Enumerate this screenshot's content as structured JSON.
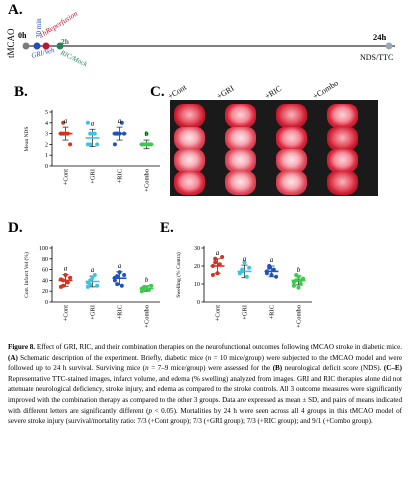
{
  "panelA": {
    "letter": "A.",
    "side_label": "tMCAO",
    "t0": "0h",
    "t_reperf": "1h",
    "reperf_label": "Reperfusion",
    "t30": "30 min",
    "gri_label": "GRI/Veh",
    "t2": "2h",
    "ric_label": "RIC/Mock",
    "t24": "24h",
    "nds_label": "NDS/TTC",
    "colors": {
      "t0": "#7b7b7b",
      "t30": "#1f4fbf",
      "reperf": "#c0142a",
      "ric": "#2e7d5b",
      "t24": "#9aa7b8"
    }
  },
  "panelB": {
    "letter": "B.",
    "chart_data": {
      "type": "scatter",
      "ylabel": "Mean NDS",
      "ylim": [
        0,
        5
      ],
      "yticks": [
        "0",
        "1",
        "2",
        "3",
        "4",
        "5"
      ],
      "categories": [
        "+Cont",
        "+GRI",
        "+RIC",
        "+Combo"
      ],
      "letters": [
        "a",
        "a",
        "a",
        "b"
      ],
      "means": [
        3.0,
        2.6,
        3.0,
        2.0
      ],
      "sd": [
        0.6,
        0.8,
        0.6,
        0.4
      ],
      "points": [
        [
          3,
          3,
          3,
          3,
          2,
          3,
          4
        ],
        [
          2,
          2,
          3,
          3,
          2,
          4,
          3
        ],
        [
          3,
          3,
          3,
          4,
          3,
          2,
          3
        ],
        [
          2,
          2,
          2,
          2,
          2,
          2,
          2,
          3,
          2
        ]
      ],
      "colors": [
        "#d6321e",
        "#39c5e0",
        "#1e54b7",
        "#3ccb4a"
      ]
    }
  },
  "panelC": {
    "letter": "C.",
    "groups": [
      "+Cont",
      "+GRI",
      "+RIC",
      "+Combo"
    ]
  },
  "panelD": {
    "letter": "D.",
    "chart_data": {
      "type": "scatter",
      "ylabel": "Corr. Infarct Vol (%)",
      "ylim": [
        0,
        100
      ],
      "yticks": [
        "0",
        "20",
        "40",
        "60",
        "80",
        "100"
      ],
      "categories": [
        "+Cont",
        "+GRI",
        "+RIC",
        "+Combo"
      ],
      "letters": [
        "a",
        "a",
        "a",
        "b"
      ],
      "means": [
        40,
        38,
        44,
        25
      ],
      "sd": [
        11,
        10,
        12,
        5
      ],
      "points": [
        [
          42,
          30,
          50,
          36,
          45,
          28,
          40
        ],
        [
          28,
          32,
          45,
          50,
          30,
          36,
          40
        ],
        [
          45,
          33,
          55,
          30,
          50,
          40,
          48
        ],
        [
          20,
          24,
          27,
          23,
          30,
          25,
          28,
          26,
          22
        ]
      ],
      "colors": [
        "#d6321e",
        "#39c5e0",
        "#1e54b7",
        "#3ccb4a"
      ]
    }
  },
  "panelE": {
    "letter": "E.",
    "chart_data": {
      "type": "scatter",
      "ylabel": "Swelling (% Contra)",
      "ylim": [
        0,
        30
      ],
      "yticks": [
        "0",
        "10",
        "20",
        "30"
      ],
      "categories": [
        "+Cont",
        "+GRI",
        "+RIC",
        "+Combo"
      ],
      "letters": [
        "a",
        "a",
        "a",
        "b"
      ],
      "means": [
        20,
        17,
        17,
        12
      ],
      "sd": [
        4,
        3.5,
        3,
        2.5
      ],
      "points": [
        [
          20,
          24,
          16,
          21,
          25,
          15,
          22
        ],
        [
          16,
          18,
          22,
          14,
          19,
          16,
          17
        ],
        [
          17,
          20,
          15,
          18,
          14,
          16,
          19
        ],
        [
          9,
          12,
          14,
          10,
          13,
          11,
          15,
          8,
          12
        ]
      ],
      "colors": [
        "#d6321e",
        "#39c5e0",
        "#1e54b7",
        "#3ccb4a"
      ]
    }
  },
  "caption": {
    "label": "Figure 8.",
    "t1": " Effect of GRI, RIC, and their combination therapies on the neurofunctional outcomes following tMCAO stroke in diabetic mice. ",
    "a_lab": "(A)",
    "t2": " Schematic description of the experiment. Briefly, diabetic mice (",
    "n1": "n",
    "t3": " = 10 mice/group) were subjected to the tMCAO model and were followed up to 24 h survival. Surviving mice (",
    "n2": "n",
    "t4": " = 7–9 mice/group) were assessed for the ",
    "b_lab": "(B)",
    "t5": " neurological deficit score (NDS). ",
    "ce_lab": "(C–E)",
    "t6": " Representative TTC-stained images, infarct volume, and edema (% swelling) analyzed from images. GRI and RIC therapies alone did not attenuate neurological deficiency, stroke injury, and edema as compared to the stroke controls. All 3 outcome measures were significantly improved with the combination therapy as compared to the other 3 groups. Data are expressed as mean ± SD, and pairs of means indicated with different letters are significantly different (",
    "p": "p",
    "t7": " < 0.05). Mortalities by 24 h were seen across all 4 groups in this tMCAO model of severe stroke injury (survival/mortality ratio: 7/3 (+Cont group); 7/3 (+GRI group); 7/3 (+RIC group); and 9/1 (+Combo group)."
  }
}
